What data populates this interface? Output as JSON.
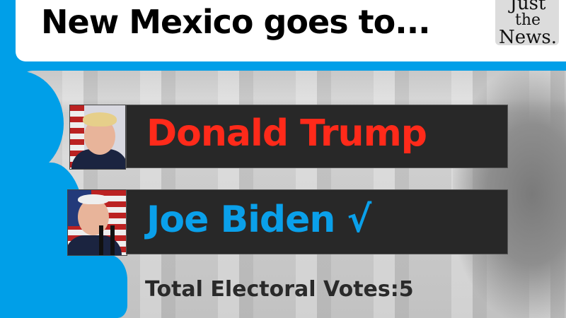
{
  "header": {
    "title": "New Mexico goes to..."
  },
  "logo": {
    "line1": "Just",
    "line2": "the",
    "line3": "News."
  },
  "candidates": [
    {
      "name": "Donald Trump",
      "color": "#ff2a1a",
      "winner": false,
      "mark": ""
    },
    {
      "name": "Joe Biden",
      "color": "#0aa0ea",
      "winner": true,
      "mark": "√"
    }
  ],
  "total": {
    "label": "Total Electoral Votes:",
    "value": "5"
  },
  "colors": {
    "accent": "#009fe8",
    "bar": "#282828"
  }
}
